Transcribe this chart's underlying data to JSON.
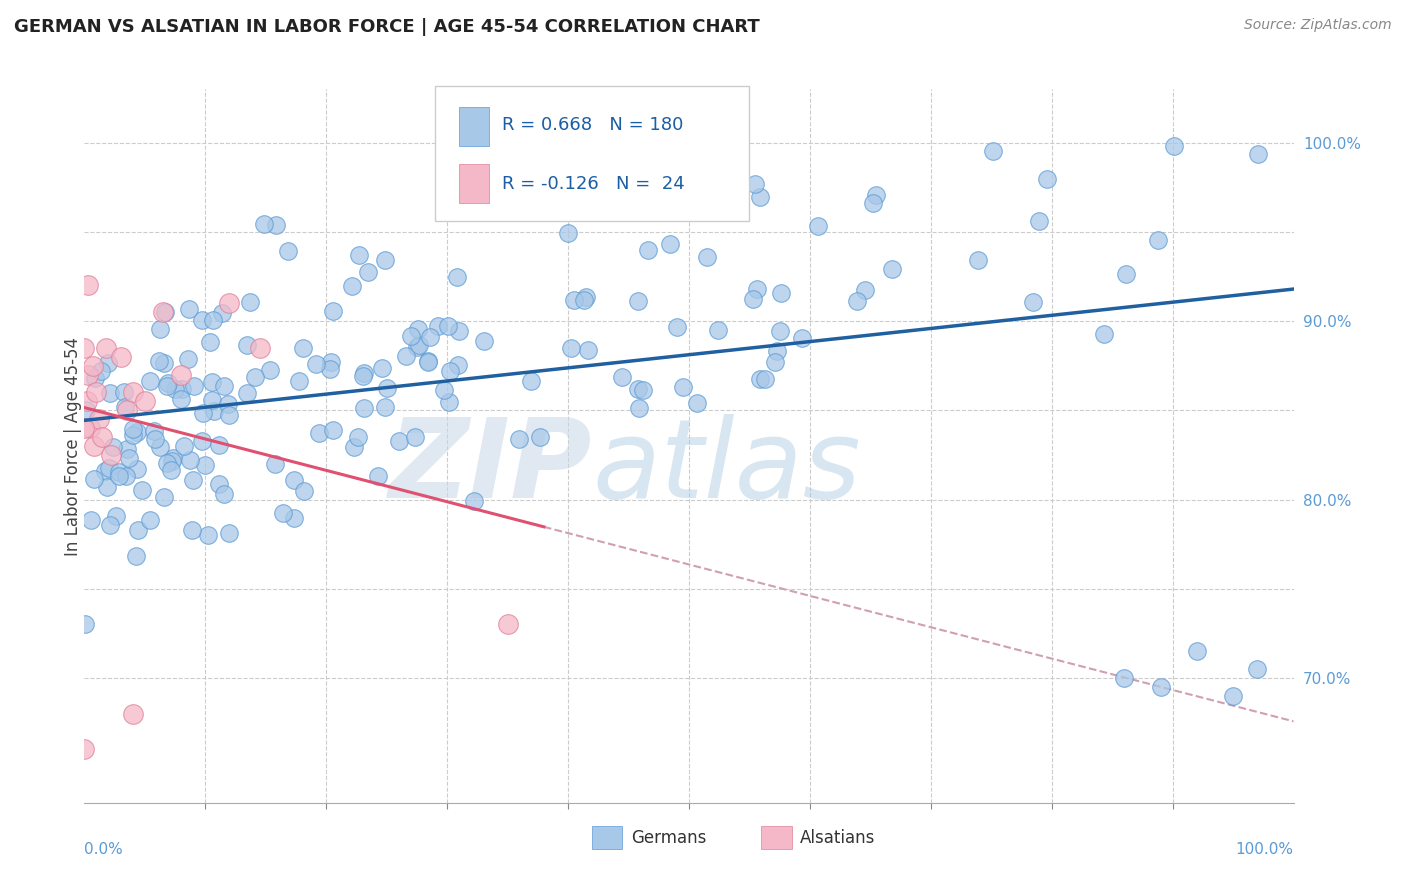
{
  "title": "GERMAN VS ALSATIAN IN LABOR FORCE | AGE 45-54 CORRELATION CHART",
  "source": "Source: ZipAtlas.com",
  "ylabel": "In Labor Force | Age 45-54",
  "x_min": 0.0,
  "x_max": 1.0,
  "y_min": 0.63,
  "y_max": 1.03,
  "blue_R": 0.668,
  "blue_N": 180,
  "pink_R": -0.126,
  "pink_N": 24,
  "blue_color": "#a8c8e8",
  "blue_edge_color": "#5b9bd5",
  "pink_color": "#f4b8c8",
  "pink_edge_color": "#e08098",
  "blue_line_color": "#2060a0",
  "pink_line_color": "#e05070",
  "pink_dash_color": "#d0a0b0",
  "grid_color": "#cccccc",
  "background_color": "#ffffff",
  "legend_label_blue": "Germans",
  "legend_label_pink": "Alsatians",
  "right_tick_color": "#5b9bd5",
  "bottom_label_color": "#5b9bd5"
}
